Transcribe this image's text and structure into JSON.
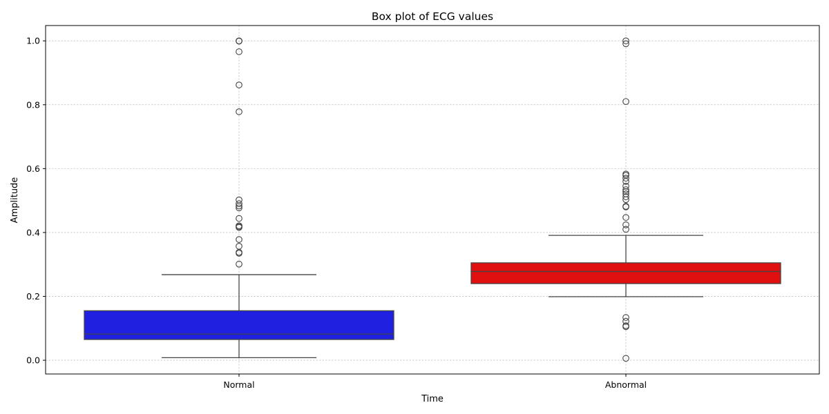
{
  "chart_data": {
    "type": "box",
    "title": "Box plot of ECG values",
    "xlabel": "Time",
    "ylabel": "Amplitude",
    "ylim": [
      -0.043,
      1.048
    ],
    "yticks": [
      0.0,
      0.2,
      0.4,
      0.6,
      0.8,
      1.0
    ],
    "ytick_labels": [
      "0.0",
      "0.2",
      "0.4",
      "0.6",
      "0.8",
      "1.0"
    ],
    "grid": true,
    "categories": [
      "Normal",
      "Abnormal"
    ],
    "boxes": [
      {
        "name": "Normal",
        "color": "#2020e0",
        "whislo": 0.008,
        "q1": 0.065,
        "median": 0.082,
        "q3": 0.155,
        "whishi": 0.268,
        "fliers": [
          1.0,
          0.999,
          0.966,
          0.862,
          0.778,
          0.502,
          0.49,
          0.483,
          0.477,
          0.444,
          0.421,
          0.418,
          0.416,
          0.378,
          0.357,
          0.338,
          0.335,
          0.301
        ]
      },
      {
        "name": "Abnormal",
        "color": "#e01010",
        "whislo": 0.199,
        "q1": 0.24,
        "median": 0.278,
        "q3": 0.305,
        "whishi": 0.391,
        "fliers": [
          1.0,
          0.991,
          0.81,
          0.583,
          0.579,
          0.57,
          0.56,
          0.545,
          0.534,
          0.528,
          0.521,
          0.512,
          0.503,
          0.482,
          0.48,
          0.447,
          0.424,
          0.41,
          0.134,
          0.122,
          0.108,
          0.105,
          0.006
        ]
      }
    ]
  }
}
